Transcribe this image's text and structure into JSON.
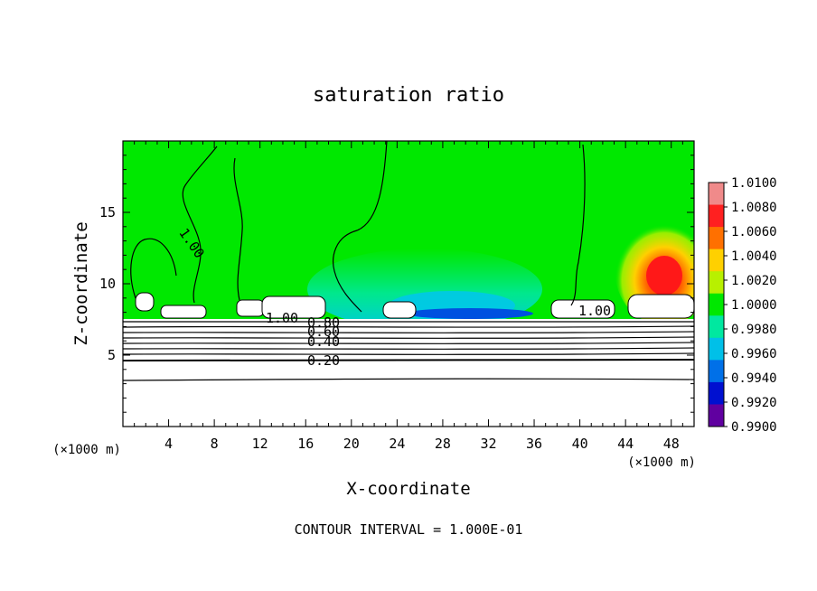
{
  "chart_data": {
    "type": "heatmap",
    "title": "saturation ratio",
    "xlabel": "X-coordinate",
    "ylabel": "Z-coordinate",
    "x_unit_left": "(×1000 m)",
    "x_unit_right": "(×1000 m)",
    "xlim": [
      0,
      50
    ],
    "ylim": [
      0,
      20
    ],
    "x_ticks": [
      4,
      8,
      12,
      16,
      20,
      24,
      28,
      32,
      36,
      40,
      44,
      48
    ],
    "y_ticks": [
      5,
      10,
      15
    ],
    "colorbar": {
      "levels": [
        "1.0100",
        "1.0080",
        "1.0060",
        "1.0040",
        "1.0020",
        "1.0000",
        "0.9980",
        "0.9960",
        "0.9940",
        "0.9920",
        "0.9900"
      ],
      "colors": [
        "#f08a8a",
        "#ff2020",
        "#ff7000",
        "#ffd000",
        "#b8f000",
        "#00e800",
        "#00e8a0",
        "#00c0e8",
        "#0070e8",
        "#0010d0",
        "#6000a0"
      ]
    },
    "contour_labels": [
      "1.00",
      "1.00",
      "0.80",
      "0.60",
      "0.40",
      "0.20",
      "1.00"
    ],
    "footer": "CONTOUR INTERVAL = 1.000E-01"
  }
}
